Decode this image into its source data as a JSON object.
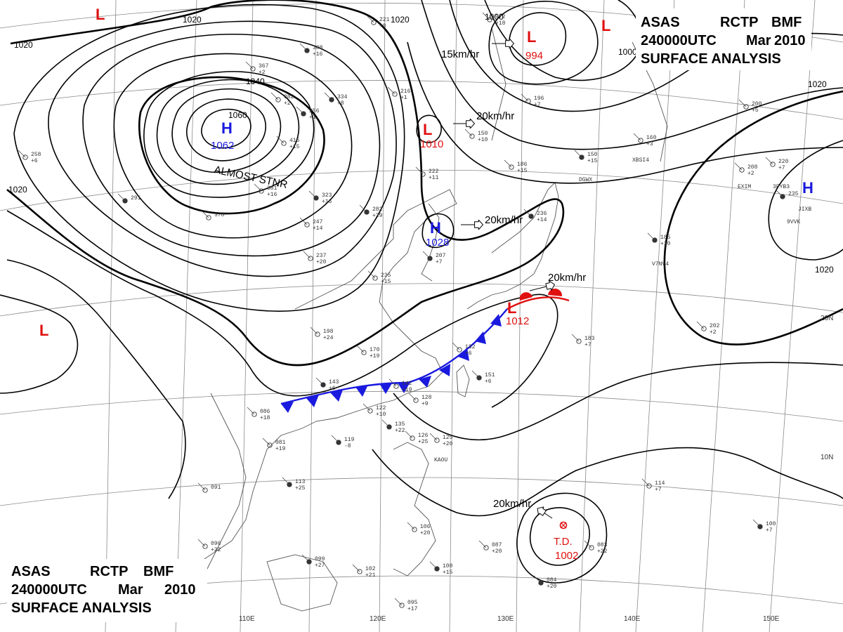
{
  "header": {
    "line1": [
      "ASAS",
      "RCTP",
      "BMF"
    ],
    "line2": [
      "240000UTC",
      "Mar",
      "2010"
    ],
    "line3": "SURFACE ANALYSIS"
  },
  "colors": {
    "high": "#1a1adf",
    "low": "#e01010",
    "cold_front": "#1a1adf",
    "warm_front": "#e01010",
    "isobar": "#000000",
    "grid": "#8a8a8a",
    "coast": "#555555"
  },
  "longitude_labels": [
    "110E",
    "120E",
    "130E",
    "140E",
    "150E"
  ],
  "latitude_labels": [
    "10N",
    "20N"
  ],
  "pressure_systems": [
    {
      "id": "h1",
      "type": "H",
      "value": "1062",
      "note": "ALMOST STNR"
    },
    {
      "id": "h2",
      "type": "H",
      "value": "1028"
    },
    {
      "id": "h3",
      "type": "H",
      "value": ""
    },
    {
      "id": "l1",
      "type": "L",
      "value": "994"
    },
    {
      "id": "l2",
      "type": "L",
      "value": "1010"
    },
    {
      "id": "l3",
      "type": "L",
      "value": "1012"
    },
    {
      "id": "l4",
      "type": "L",
      "value": ""
    },
    {
      "id": "l5",
      "type": "L",
      "value": ""
    },
    {
      "id": "l6",
      "type": "L",
      "value": ""
    },
    {
      "id": "td",
      "type": "T.D.",
      "value": "1002"
    }
  ],
  "motions": [
    {
      "id": "m1",
      "text": "15km/hr"
    },
    {
      "id": "m2",
      "text": "20km/hr"
    },
    {
      "id": "m3",
      "text": "20km/hr"
    },
    {
      "id": "m4",
      "text": "20km/hr"
    },
    {
      "id": "m5",
      "text": "20km/hr"
    }
  ],
  "isobar_labels": [
    "1020",
    "1020",
    "1020",
    "1040",
    "1060",
    "1000",
    "1000",
    "1020",
    "1020",
    "1020"
  ],
  "stations": [
    {
      "id": "s1",
      "lines": [
        "308",
        "+16"
      ]
    },
    {
      "id": "s2",
      "lines": [
        "367",
        "+2"
      ]
    },
    {
      "id": "s3",
      "lines": [
        "382",
        "+2"
      ]
    },
    {
      "id": "s4",
      "lines": [
        "334",
        "+8"
      ]
    },
    {
      "id": "s5",
      "lines": [
        "415",
        "+15"
      ]
    },
    {
      "id": "s6",
      "lines": [
        "381",
        "+16"
      ]
    },
    {
      "id": "s7",
      "lines": [
        "323",
        "+16"
      ]
    },
    {
      "id": "s8",
      "lines": [
        "247",
        "+14"
      ]
    },
    {
      "id": "s9",
      "lines": [
        "237",
        "+20"
      ]
    },
    {
      "id": "s10",
      "lines": [
        "282",
        "+29"
      ]
    },
    {
      "id": "s11",
      "lines": [
        "235",
        "+15"
      ]
    },
    {
      "id": "s12",
      "lines": [
        "222",
        "+11"
      ]
    },
    {
      "id": "s13",
      "lines": [
        "207",
        "+7"
      ]
    },
    {
      "id": "s14",
      "lines": [
        "198",
        "+24"
      ]
    },
    {
      "id": "s15",
      "lines": [
        "170",
        "+19"
      ]
    },
    {
      "id": "s16",
      "lines": [
        "143",
        "+6"
      ]
    },
    {
      "id": "s17",
      "lines": [
        "142",
        "+19"
      ]
    },
    {
      "id": "s18",
      "lines": [
        "132",
        "+6"
      ]
    },
    {
      "id": "s19",
      "lines": [
        "151",
        "+6"
      ]
    },
    {
      "id": "s20",
      "lines": [
        "128",
        "+9"
      ]
    },
    {
      "id": "s21",
      "lines": [
        "122",
        "+10"
      ]
    },
    {
      "id": "s22",
      "lines": [
        "135",
        "+22"
      ]
    },
    {
      "id": "s23",
      "lines": [
        "126",
        "+25"
      ]
    },
    {
      "id": "s24",
      "lines": [
        "125",
        "+20"
      ]
    },
    {
      "id": "s25",
      "lines": [
        "119",
        "-8"
      ]
    },
    {
      "id": "s26",
      "lines": [
        "086",
        "+18"
      ]
    },
    {
      "id": "s27",
      "lines": [
        "081",
        "+19"
      ]
    },
    {
      "id": "s28",
      "lines": [
        "113",
        "+25"
      ]
    },
    {
      "id": "s29",
      "lines": [
        "091"
      ]
    },
    {
      "id": "s30",
      "lines": [
        "096",
        "+22"
      ]
    },
    {
      "id": "s31",
      "lines": [
        "099",
        "+27"
      ]
    },
    {
      "id": "s32",
      "lines": [
        "102",
        "+21"
      ]
    },
    {
      "id": "s33",
      "lines": [
        "095",
        "+17"
      ]
    },
    {
      "id": "s34",
      "lines": [
        "100",
        "+15"
      ]
    },
    {
      "id": "s35",
      "lines": [
        "106",
        "+20"
      ]
    },
    {
      "id": "s36",
      "lines": [
        "087",
        "+20"
      ]
    },
    {
      "id": "s37",
      "lines": [
        "084",
        "+20"
      ]
    },
    {
      "id": "s38",
      "lines": [
        "083",
        "+22"
      ]
    },
    {
      "id": "s39",
      "lines": [
        "114",
        "+7"
      ]
    },
    {
      "id": "s40",
      "lines": [
        "100",
        "+7"
      ]
    },
    {
      "id": "s41",
      "lines": [
        "183",
        "+7"
      ]
    },
    {
      "id": "s42",
      "lines": [
        "202",
        "+2"
      ]
    },
    {
      "id": "s43",
      "lines": [
        "185",
        "+10"
      ]
    },
    {
      "id": "s44",
      "lines": [
        "208",
        "+2"
      ]
    },
    {
      "id": "s45",
      "lines": [
        "220",
        "+7"
      ]
    },
    {
      "id": "s46",
      "lines": [
        "235"
      ]
    },
    {
      "id": "s47",
      "lines": [
        "200",
        "+5"
      ]
    },
    {
      "id": "s48",
      "lines": [
        "160",
        "+3"
      ]
    },
    {
      "id": "s49",
      "lines": [
        "150",
        "+15"
      ]
    },
    {
      "id": "s50",
      "lines": [
        "150",
        "+10"
      ]
    },
    {
      "id": "s51",
      "lines": [
        "186",
        "+15"
      ]
    },
    {
      "id": "s52",
      "lines": [
        "236",
        "+14"
      ]
    },
    {
      "id": "s53",
      "lines": [
        "196",
        "+7"
      ]
    },
    {
      "id": "s54",
      "lines": [
        "972",
        "+18"
      ]
    },
    {
      "id": "s55",
      "lines": [
        "256",
        "+1"
      ]
    },
    {
      "id": "s56",
      "lines": [
        "216",
        "+1"
      ]
    },
    {
      "id": "s57",
      "lines": [
        "378"
      ]
    },
    {
      "id": "s58",
      "lines": [
        "291"
      ]
    },
    {
      "id": "s59",
      "lines": [
        "221",
        "+8"
      ]
    },
    {
      "id": "s60",
      "lines": [
        "258",
        "+6"
      ]
    }
  ],
  "call_signs": [
    "DGWX",
    "XBSI4",
    "EXIM",
    "3FYB3",
    "9VVK",
    "V7NV4",
    "KAOU",
    "JIXB"
  ]
}
